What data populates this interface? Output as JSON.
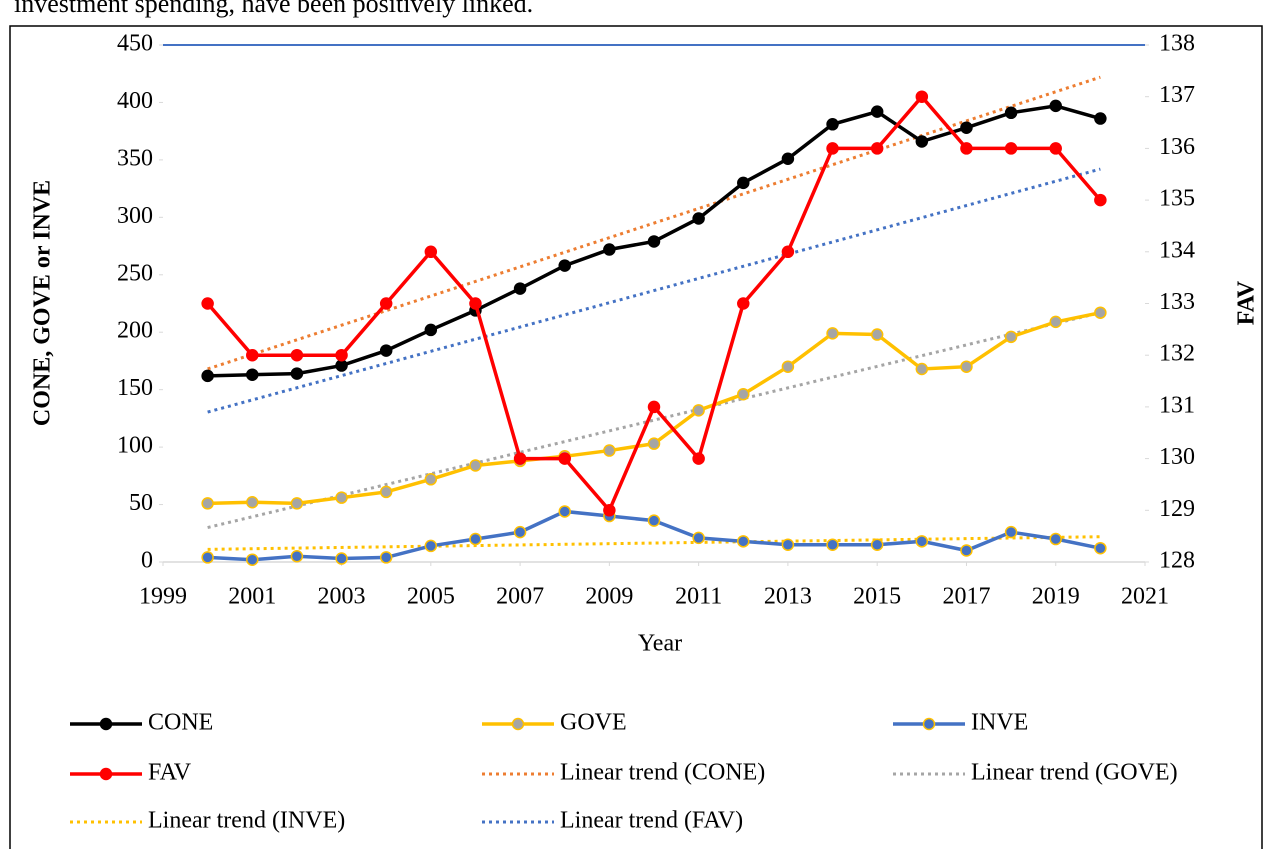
{
  "caption_text": "investment spending, have been positively linked.",
  "chart_data": {
    "type": "line",
    "x_label": "Year",
    "y_label": "CONE, GOVE or INVE",
    "y2_label": "FAV",
    "x": [
      2000,
      2001,
      2002,
      2003,
      2004,
      2005,
      2006,
      2007,
      2008,
      2009,
      2010,
      2011,
      2012,
      2013,
      2014,
      2015,
      2016,
      2017,
      2018,
      2019,
      2020
    ],
    "xlim": [
      1999,
      2021
    ],
    "xticks": [
      1999,
      2001,
      2003,
      2005,
      2007,
      2009,
      2011,
      2013,
      2015,
      2017,
      2019,
      2021
    ],
    "ylim": [
      0,
      450
    ],
    "yticks": [
      0,
      50,
      100,
      150,
      200,
      250,
      300,
      350,
      400,
      450
    ],
    "y2lim": [
      128,
      138
    ],
    "y2ticks": [
      128,
      129,
      130,
      131,
      132,
      133,
      134,
      135,
      136,
      137,
      138
    ],
    "legend": "bottom",
    "series": [
      {
        "name": "CONE",
        "color": "#000000",
        "marker_color": "#000000",
        "values": [
          162,
          163,
          164,
          171,
          184,
          202,
          219,
          238,
          258,
          272,
          279,
          299,
          330,
          351,
          381,
          392,
          366,
          378,
          391,
          397,
          386
        ]
      },
      {
        "name": "GOVE",
        "color": "#ffc000",
        "marker_color": "#a5a5a5",
        "values": [
          51,
          52,
          51,
          56,
          61,
          72,
          84,
          88,
          92,
          97,
          103,
          132,
          146,
          170,
          199,
          198,
          168,
          170,
          196,
          209,
          217
        ]
      },
      {
        "name": "INVE",
        "color": "#4472c4",
        "marker_color": "#4472c4",
        "values": [
          4,
          2,
          5,
          3,
          4,
          14,
          20,
          26,
          44,
          40,
          36,
          21,
          18,
          15,
          15,
          15,
          18,
          10,
          26,
          20,
          12
        ]
      },
      {
        "name": "FAV",
        "color": "#ff0000",
        "marker_color": "#ff0000",
        "axis": "y2",
        "values": [
          133,
          132,
          132,
          132,
          133,
          134,
          133,
          130,
          130,
          129,
          131,
          130,
          133,
          134,
          136,
          136,
          137,
          136,
          136,
          136,
          135
        ]
      },
      {
        "name": "Linear trend (CONE)",
        "color": "#ed7d31",
        "dashed": true,
        "x": [
          2000,
          2020
        ],
        "values": [
          168,
          422
        ]
      },
      {
        "name": "Linear trend (GOVE)",
        "color": "#a5a5a5",
        "dashed": true,
        "x": [
          2000,
          2020
        ],
        "values": [
          30,
          217
        ]
      },
      {
        "name": "Linear trend (INVE)",
        "color": "#ffc000",
        "dashed": true,
        "x": [
          2000,
          2020
        ],
        "values": [
          11,
          22
        ]
      },
      {
        "name": "Linear trend (FAV)",
        "color": "#4472c4",
        "dashed": true,
        "axis": "y2",
        "x": [
          2000,
          2020
        ],
        "values": [
          130.9,
          135.6
        ]
      }
    ]
  }
}
